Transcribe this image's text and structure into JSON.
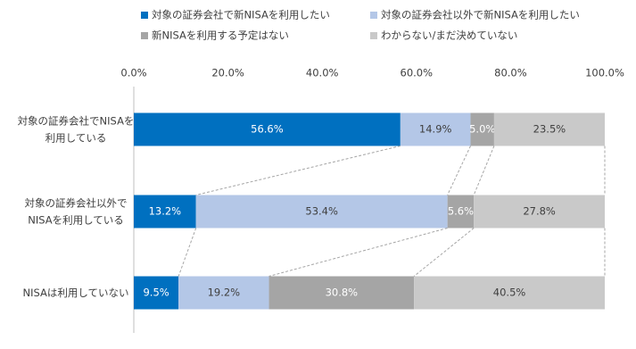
{
  "chart_data": {
    "type": "stacked-bar-horizontal",
    "categories": [
      "対象の証券会社でNISAを\n利用している",
      "対象の証券会社以外で\nNISAを利用している",
      "NISAは利用していない"
    ],
    "series": [
      {
        "name": "対象の証券会社で新NISAを利用したい",
        "color": "#0070c0",
        "values": [
          56.6,
          13.2,
          9.5
        ],
        "value_labels": [
          "56.6%",
          "13.2%",
          "9.5%"
        ]
      },
      {
        "name": "対象の証券会社以外で新NISAを利用したい",
        "color": "#b4c7e7",
        "values": [
          14.9,
          53.4,
          19.2
        ],
        "value_labels": [
          "14.9%",
          "53.4%",
          "19.2%"
        ]
      },
      {
        "name": "新NISAを利用する予定はない",
        "color": "#a5a5a5",
        "values": [
          5.0,
          5.6,
          30.8
        ],
        "value_labels": [
          "5.0%",
          "5.6%",
          "30.8%"
        ]
      },
      {
        "name": "わからない/まだ決めていない",
        "color": "#c9c9c9",
        "values": [
          23.5,
          27.8,
          40.5
        ],
        "value_labels": [
          "23.5%",
          "27.8%",
          "40.5%"
        ]
      }
    ],
    "xlim": [
      0,
      100
    ],
    "xticks": [
      {
        "value": 0,
        "label": "0.0%"
      },
      {
        "value": 20,
        "label": "20.0%"
      },
      {
        "value": 40,
        "label": "40.0%"
      },
      {
        "value": 60,
        "label": "60.0%"
      },
      {
        "value": 80,
        "label": "80.0%"
      },
      {
        "value": 100,
        "label": "100.0%"
      }
    ],
    "legend": "top"
  }
}
